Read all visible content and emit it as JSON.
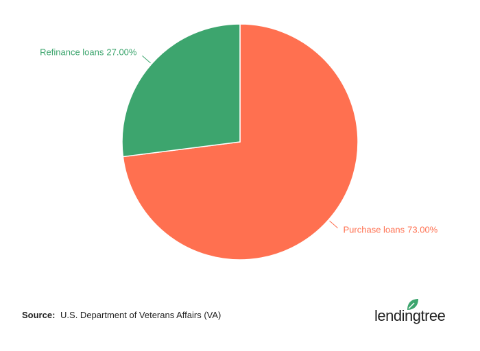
{
  "chart_data": {
    "type": "pie",
    "categories": [
      "Purchase loans",
      "Refinance loans"
    ],
    "values": [
      73,
      27
    ],
    "value_labels": [
      "73.00%",
      "27.00%"
    ],
    "colors": [
      "#ff7050",
      "#3da56e"
    ]
  },
  "footer": {
    "source_label": "Source:",
    "source": "U.S. Department of Veterans Affairs (VA)",
    "logo": "lendingtree"
  }
}
